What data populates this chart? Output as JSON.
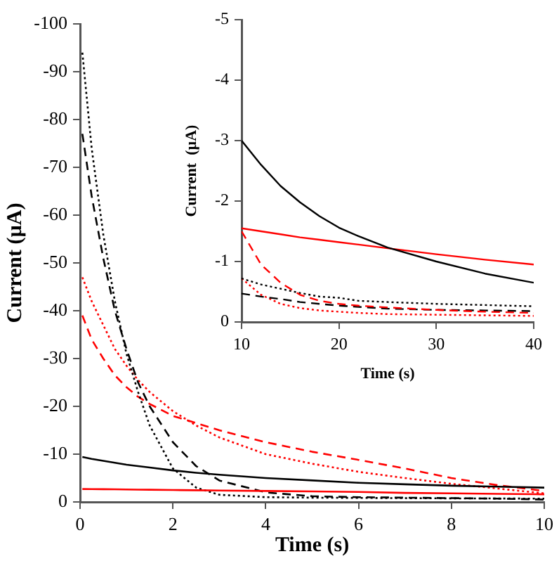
{
  "chart_data": [
    {
      "type": "line",
      "xlabel": "Time (s)",
      "ylabel": "Current (µA)",
      "xlim": [
        0,
        10
      ],
      "xticks": [
        0,
        2,
        4,
        6,
        8,
        10
      ],
      "ylim": [
        0,
        -100
      ],
      "yticks": [
        0,
        -10,
        -20,
        -30,
        -40,
        -50,
        -60,
        -70,
        -80,
        -90,
        -100
      ],
      "grid": false,
      "legend": false,
      "marker": "none",
      "x": [
        0.05,
        0.25,
        0.5,
        0.75,
        1,
        1.25,
        1.5,
        2,
        2.5,
        3,
        4,
        5,
        6,
        7,
        8,
        9,
        10
      ],
      "series": [
        {
          "color": "#000000",
          "line_style": "solid",
          "values": [
            -9.4,
            -9.0,
            -8.6,
            -8.2,
            -7.8,
            -7.5,
            -7.2,
            -6.6,
            -6.1,
            -5.7,
            -5,
            -4.5,
            -4,
            -3.7,
            -3.4,
            -3.2,
            -3.0
          ]
        },
        {
          "color": "#ff0000",
          "line_style": "solid",
          "values": [
            -2.7,
            -2.69,
            -2.67,
            -2.64,
            -2.6,
            -2.58,
            -2.55,
            -2.5,
            -2.45,
            -2.4,
            -2.3,
            -2.2,
            -2.1,
            -1.9,
            -1.8,
            -1.7,
            -1.6
          ]
        },
        {
          "color": "#000000",
          "line_style": "dashed",
          "values": [
            -77,
            -64,
            -51,
            -40,
            -32,
            -25,
            -20,
            -12.5,
            -7.5,
            -4.5,
            -2,
            -1.2,
            -1,
            -0.9,
            -0.8,
            -0.7,
            -0.5
          ]
        },
        {
          "color": "#000000",
          "line_style": "dotted",
          "values": [
            -94,
            -74,
            -56,
            -42,
            -31,
            -23,
            -16,
            -7,
            -3,
            -1.5,
            -1,
            -0.9,
            -0.85,
            -0.8,
            -0.75,
            -0.72,
            -0.7
          ]
        },
        {
          "color": "#ff0000",
          "line_style": "dashed",
          "values": [
            -39,
            -34,
            -30,
            -26.5,
            -24,
            -22,
            -20.5,
            -18,
            -16.5,
            -15,
            -12.5,
            -10.5,
            -8.8,
            -7,
            -5,
            -3.5,
            -2.3
          ]
        },
        {
          "color": "#ff0000",
          "line_style": "dotted",
          "values": [
            -47,
            -42,
            -37,
            -32,
            -28.5,
            -25.5,
            -23,
            -19,
            -16,
            -13.5,
            -10,
            -8,
            -6.3,
            -5,
            -3.8,
            -2.8,
            -1.8
          ]
        }
      ]
    },
    {
      "type": "line",
      "xlabel": "Time (s)",
      "ylabel": "Current  (µA)",
      "xlim": [
        10,
        40
      ],
      "xticks": [
        10,
        20,
        30,
        40
      ],
      "ylim": [
        0,
        -5
      ],
      "yticks": [
        0,
        -1,
        -2,
        -3,
        -4,
        -5
      ],
      "grid": false,
      "legend": false,
      "marker": "none",
      "x": [
        10,
        12,
        14,
        16,
        18,
        20,
        22,
        25,
        30,
        35,
        40
      ],
      "series": [
        {
          "color": "#000000",
          "line_style": "solid",
          "values": [
            -3,
            -2.6,
            -2.25,
            -1.98,
            -1.75,
            -1.56,
            -1.42,
            -1.23,
            -1.0,
            -0.8,
            -0.65
          ]
        },
        {
          "color": "#ff0000",
          "line_style": "solid",
          "values": [
            -1.55,
            -1.5,
            -1.45,
            -1.4,
            -1.36,
            -1.32,
            -1.28,
            -1.22,
            -1.12,
            -1.03,
            -0.95
          ]
        },
        {
          "color": "#ff0000",
          "line_style": "dashed",
          "values": [
            -1.5,
            -0.95,
            -0.65,
            -0.45,
            -0.35,
            -0.3,
            -0.27,
            -0.24,
            -0.2,
            -0.17,
            -0.15
          ]
        },
        {
          "color": "#000000",
          "line_style": "dotted",
          "values": [
            -0.72,
            -0.62,
            -0.55,
            -0.48,
            -0.42,
            -0.4,
            -0.35,
            -0.33,
            -0.3,
            -0.28,
            -0.26
          ]
        },
        {
          "color": "#000000",
          "line_style": "dashed",
          "values": [
            -0.47,
            -0.42,
            -0.38,
            -0.33,
            -0.3,
            -0.27,
            -0.25,
            -0.22,
            -0.2,
            -0.19,
            -0.18
          ]
        },
        {
          "color": "#ff0000",
          "line_style": "dotted",
          "values": [
            -0.72,
            -0.45,
            -0.3,
            -0.23,
            -0.19,
            -0.17,
            -0.15,
            -0.13,
            -0.12,
            -0.11,
            -0.1
          ]
        }
      ]
    }
  ]
}
